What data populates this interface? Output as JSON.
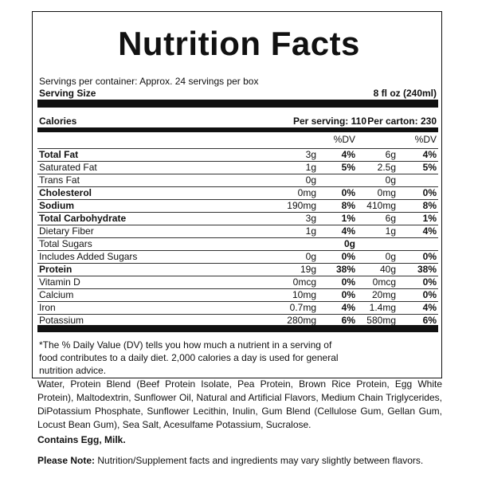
{
  "header": {
    "title": "Nutrition Facts",
    "servings": "Servings per container: Approx. 24 servings per box",
    "serving_size_label": "Serving Size",
    "serving_size": "8 fl oz (240ml)"
  },
  "calories": {
    "label": "Calories",
    "per_serving": "Per serving: 110",
    "per_carton": "Per carton: 230"
  },
  "dv_headers": [
    "%DV",
    "%DV"
  ],
  "table": {
    "rows": [
      {
        "name": "Total Fat",
        "bold": true,
        "cells": [
          "3g",
          "4%",
          "6g",
          "4%"
        ]
      },
      {
        "name": "Saturated Fat",
        "cells": [
          "1g",
          "5%",
          "2.5g",
          "5%"
        ]
      },
      {
        "name": "Trans Fat",
        "cells": [
          "0g",
          null,
          "0g",
          null
        ]
      },
      {
        "name": "Cholesterol",
        "bold": true,
        "cells": [
          "0mg",
          "0%",
          "0mg",
          "0%"
        ]
      },
      {
        "name": "Sodium",
        "bold": true,
        "cells": [
          "190mg",
          "8%",
          "410mg",
          "8%"
        ]
      },
      {
        "name": "Total Carbohydrate",
        "bold": true,
        "cells": [
          "3g",
          "1%",
          "6g",
          "1%"
        ]
      },
      {
        "name": "Dietary Fiber",
        "cells": [
          "1g",
          "4%",
          "1g",
          "4%"
        ]
      },
      {
        "name": "Total Sugars",
        "cells": [
          null,
          "0g",
          null,
          null
        ]
      },
      {
        "name": "Includes Added Sugars",
        "cells": [
          "0g",
          "0%",
          "0g",
          "0%"
        ]
      },
      {
        "name": "Protein",
        "bold": true,
        "cells": [
          "19g",
          "38%",
          "40g",
          "38%"
        ]
      },
      {
        "name": "Vitamin D",
        "cells": [
          "0mcg",
          "0%",
          "0mcg",
          "0%"
        ]
      },
      {
        "name": "Calcium",
        "cells": [
          "10mg",
          "0%",
          "20mg",
          "0%"
        ]
      },
      {
        "name": "Iron",
        "cells": [
          "0.7mg",
          "4%",
          "1.4mg",
          "4%"
        ]
      },
      {
        "name": "Potassium",
        "cells": [
          "280mg",
          "6%",
          "580mg",
          "6%"
        ]
      }
    ]
  },
  "footnote": "*The % Daily Value (DV) tells you how much a nutrient in a serving of food contributes to a daily diet. 2,000 calories a day is used for general nutrition advice.",
  "ingredients": "Water, Protein Blend (Beef Protein Isolate, Pea Protein, Brown Rice Protein, Egg White Protein), Maltodextrin, Sunflower Oil, Natural and Artificial Flavors, Medium Chain Triglycerides, DiPotassium Phosphate, Sunflower Lecithin, Inulin, Gum Blend (Cellulose Gum, Gellan Gum, Locust Bean Gum), Sea Salt, Acesulfame Potassium, Sucralose.",
  "allergens": "Contains Egg, Milk.",
  "note": {
    "label": "Please Note:",
    "text": "Nutrition/Supplement facts and ingredients may vary slightly between flavors."
  }
}
